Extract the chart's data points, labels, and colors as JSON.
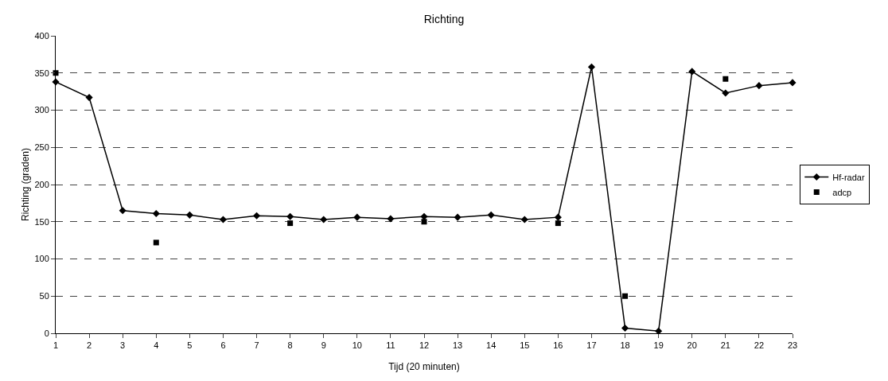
{
  "chart_data": {
    "type": "line",
    "title": "Richting",
    "xlabel": "Tijd (20 minuten)",
    "ylabel": "Richting (graden)",
    "x": [
      1,
      2,
      3,
      4,
      5,
      6,
      7,
      8,
      9,
      10,
      11,
      12,
      13,
      14,
      15,
      16,
      17,
      18,
      19,
      20,
      21,
      22,
      23
    ],
    "xlim": [
      1,
      23
    ],
    "xticks": [
      1,
      2,
      3,
      4,
      5,
      6,
      7,
      8,
      9,
      10,
      11,
      12,
      13,
      14,
      15,
      16,
      17,
      18,
      19,
      20,
      21,
      22,
      23
    ],
    "ylim": [
      0,
      400
    ],
    "yticks": [
      0,
      50,
      100,
      150,
      200,
      250,
      300,
      350,
      400
    ],
    "grid": "y",
    "legend": "right",
    "series": [
      {
        "name": "Hf-radar",
        "color": "#000000",
        "marker": "diamond",
        "line_style": "solid",
        "values": [
          338,
          317,
          165,
          161,
          159,
          153,
          158,
          157,
          153,
          156,
          154,
          157,
          156,
          159,
          153,
          156,
          358,
          7,
          3,
          352,
          323,
          333,
          337
        ]
      },
      {
        "name": "adcp",
        "type": "scatter",
        "color": "#000000",
        "marker": "square",
        "values": [
          350,
          null,
          null,
          122,
          null,
          null,
          null,
          148,
          null,
          null,
          null,
          150,
          null,
          null,
          null,
          148,
          null,
          50,
          null,
          null,
          342,
          null,
          null
        ]
      }
    ]
  }
}
